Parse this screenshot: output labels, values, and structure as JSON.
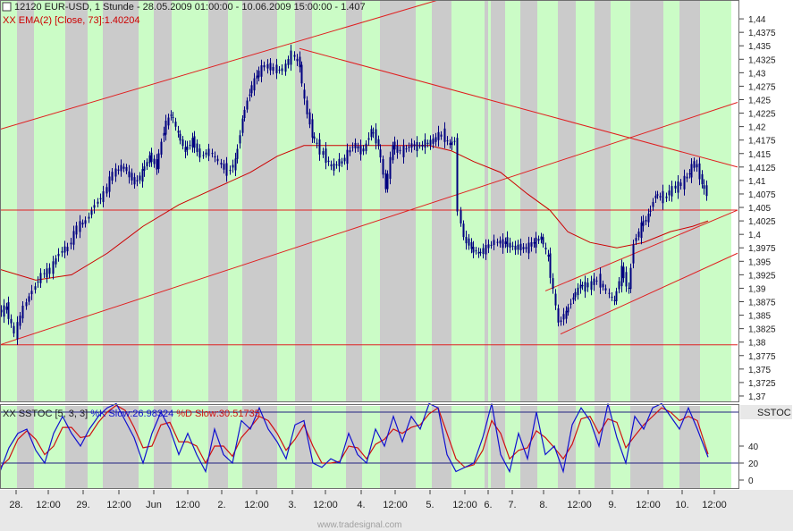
{
  "header": {
    "instrument": "12120  EUR-USD, 1 Stunde - 28.05.2009 01:00:00 - 10.06.2009 15:00:00 - 1.407",
    "ema_label": "XX EMA(2) [Close, 73]:1.40204"
  },
  "stoch_panel": {
    "prefix": "XX SSTOC [5, 3, 3] ",
    "k_label": "%K Slow:26.98324 ",
    "d_label": "%D Slow:30.51735",
    "badge": "SSTOC",
    "levels": [
      80,
      20
    ],
    "y_ticks": [
      "40",
      "20",
      "0"
    ]
  },
  "watermark": "www.tradesignal.com",
  "colors": {
    "green_band": "#cbfcc6",
    "gray_band": "#cbcbcb",
    "ema": "#cc0000",
    "trendline": "#e02020",
    "candle": "#000080",
    "k_line": "#1010d0",
    "d_line": "#d01010"
  },
  "chart_data": {
    "type": "candlestick",
    "title": "12120  EUR-USD, 1 Stunde - 28.05.2009 01:00:00 - 10.06.2009 15:00:00 - 1.407",
    "y_ticks": [
      "1,44",
      "1,4375",
      "1,435",
      "1,4325",
      "1,43",
      "1,4275",
      "1,425",
      "1,4225",
      "1,42",
      "1,4175",
      "1,415",
      "1,4125",
      "1,41",
      "1,4075",
      "1,405",
      "1,4025",
      "1,4",
      "1,3975",
      "1,395",
      "1,3925",
      "1,39",
      "1,3875",
      "1,385",
      "1,3825",
      "1,38",
      "1,3775",
      "1,375",
      "1,3725",
      "1,37"
    ],
    "ylim": [
      1.369,
      1.4435
    ],
    "x_ticks": [
      "28.",
      "12:00",
      "29.",
      "12:00",
      "Jun",
      "12:00",
      "2.",
      "12:00",
      "3.",
      "12:00",
      "4.",
      "12:00",
      "5.",
      "12:00",
      "6.",
      "7.",
      "8.",
      "12:00",
      "9.",
      "12:00",
      "10.",
      "12:00"
    ],
    "last_close": 1.407,
    "ema_value": 1.40204,
    "price_path": [
      [
        0,
        1.3855
      ],
      [
        8,
        1.3865
      ],
      [
        18,
        1.3815
      ],
      [
        28,
        1.3865
      ],
      [
        38,
        1.3895
      ],
      [
        48,
        1.3925
      ],
      [
        58,
        1.3935
      ],
      [
        68,
        1.3965
      ],
      [
        78,
        1.3975
      ],
      [
        88,
        1.4015
      ],
      [
        98,
        1.4025
      ],
      [
        108,
        1.4055
      ],
      [
        118,
        1.4075
      ],
      [
        128,
        1.4115
      ],
      [
        140,
        1.4125
      ],
      [
        152,
        1.4095
      ],
      [
        160,
        1.4115
      ],
      [
        168,
        1.4145
      ],
      [
        176,
        1.4125
      ],
      [
        184,
        1.4195
      ],
      [
        192,
        1.4225
      ],
      [
        200,
        1.4185
      ],
      [
        208,
        1.4155
      ],
      [
        216,
        1.4175
      ],
      [
        226,
        1.4145
      ],
      [
        236,
        1.4155
      ],
      [
        246,
        1.4135
      ],
      [
        256,
        1.4115
      ],
      [
        264,
        1.4135
      ],
      [
        272,
        1.4215
      ],
      [
        280,
        1.4265
      ],
      [
        288,
        1.4295
      ],
      [
        298,
        1.4315
      ],
      [
        308,
        1.4305
      ],
      [
        318,
        1.4305
      ],
      [
        328,
        1.4335
      ],
      [
        336,
        1.4315
      ],
      [
        342,
        1.4245
      ],
      [
        350,
        1.4185
      ],
      [
        360,
        1.4155
      ],
      [
        372,
        1.4125
      ],
      [
        384,
        1.4135
      ],
      [
        396,
        1.4165
      ],
      [
        408,
        1.4155
      ],
      [
        416,
        1.4195
      ],
      [
        424,
        1.4165
      ],
      [
        432,
        1.4085
      ],
      [
        440,
        1.4165
      ],
      [
        450,
        1.4155
      ],
      [
        462,
        1.4165
      ],
      [
        474,
        1.4165
      ],
      [
        486,
        1.4175
      ],
      [
        496,
        1.4185
      ],
      [
        504,
        1.4165
      ],
      [
        510,
        1.4175
      ],
      [
        514,
        1.4045
      ],
      [
        520,
        1.3995
      ],
      [
        528,
        1.3975
      ],
      [
        536,
        1.3965
      ],
      [
        545,
        1.3975
      ],
      [
        555,
        1.3985
      ],
      [
        566,
        1.3985
      ],
      [
        578,
        1.3975
      ],
      [
        590,
        1.3975
      ],
      [
        598,
        1.3985
      ],
      [
        606,
        1.3995
      ],
      [
        614,
        1.3955
      ],
      [
        620,
        1.3895
      ],
      [
        626,
        1.3835
      ],
      [
        634,
        1.3855
      ],
      [
        642,
        1.3885
      ],
      [
        650,
        1.3905
      ],
      [
        660,
        1.3905
      ],
      [
        670,
        1.3915
      ],
      [
        680,
        1.3895
      ],
      [
        688,
        1.3875
      ],
      [
        696,
        1.3935
      ],
      [
        704,
        1.3895
      ],
      [
        710,
        1.3985
      ],
      [
        718,
        1.4015
      ],
      [
        726,
        1.4035
      ],
      [
        734,
        1.4075
      ],
      [
        744,
        1.4065
      ],
      [
        754,
        1.4085
      ],
      [
        764,
        1.4095
      ],
      [
        772,
        1.4115
      ],
      [
        778,
        1.4135
      ],
      [
        786,
        1.4095
      ],
      [
        792,
        1.4075
      ]
    ],
    "ema_path": [
      [
        0,
        1.3935
      ],
      [
        40,
        1.3915
      ],
      [
        80,
        1.3925
      ],
      [
        120,
        1.3965
      ],
      [
        160,
        1.4015
      ],
      [
        200,
        1.4055
      ],
      [
        240,
        1.4085
      ],
      [
        280,
        1.4115
      ],
      [
        310,
        1.4145
      ],
      [
        340,
        1.4165
      ],
      [
        370,
        1.4165
      ],
      [
        400,
        1.4165
      ],
      [
        440,
        1.4165
      ],
      [
        480,
        1.4165
      ],
      [
        505,
        1.4155
      ],
      [
        530,
        1.4135
      ],
      [
        560,
        1.4115
      ],
      [
        590,
        1.4075
      ],
      [
        615,
        1.4045
      ],
      [
        635,
        1.4005
      ],
      [
        660,
        1.3985
      ],
      [
        690,
        1.3975
      ],
      [
        720,
        1.3985
      ],
      [
        750,
        1.4005
      ],
      [
        775,
        1.4015
      ],
      [
        792,
        1.4025
      ]
    ],
    "trendlines": [
      [
        [
          0,
          1.4195
        ],
        [
          490,
          1.4435
        ]
      ],
      [
        [
          335,
          1.4345
        ],
        [
          825,
          1.4125
        ]
      ],
      [
        [
          0,
          1.3795
        ],
        [
          825,
          1.4245
        ]
      ],
      [
        [
          0,
          1.4045
        ],
        [
          825,
          1.4045
        ]
      ],
      [
        [
          0,
          1.3795
        ],
        [
          825,
          1.3795
        ]
      ],
      [
        [
          610,
          1.3895
        ],
        [
          825,
          1.4045
        ]
      ],
      [
        [
          627,
          1.3815
        ],
        [
          825,
          1.3965
        ]
      ]
    ],
    "stoch_k": [
      [
        0,
        10
      ],
      [
        10,
        38
      ],
      [
        20,
        55
      ],
      [
        30,
        60
      ],
      [
        40,
        35
      ],
      [
        50,
        20
      ],
      [
        60,
        55
      ],
      [
        70,
        75
      ],
      [
        80,
        55
      ],
      [
        90,
        40
      ],
      [
        100,
        60
      ],
      [
        110,
        75
      ],
      [
        120,
        85
      ],
      [
        130,
        90
      ],
      [
        140,
        70
      ],
      [
        150,
        50
      ],
      [
        160,
        20
      ],
      [
        170,
        55
      ],
      [
        180,
        80
      ],
      [
        190,
        60
      ],
      [
        200,
        30
      ],
      [
        210,
        55
      ],
      [
        220,
        30
      ],
      [
        230,
        10
      ],
      [
        240,
        60
      ],
      [
        250,
        30
      ],
      [
        260,
        20
      ],
      [
        270,
        70
      ],
      [
        280,
        60
      ],
      [
        290,
        85
      ],
      [
        300,
        60
      ],
      [
        310,
        45
      ],
      [
        320,
        25
      ],
      [
        330,
        65
      ],
      [
        340,
        70
      ],
      [
        350,
        20
      ],
      [
        360,
        15
      ],
      [
        370,
        25
      ],
      [
        380,
        20
      ],
      [
        390,
        55
      ],
      [
        400,
        30
      ],
      [
        410,
        20
      ],
      [
        420,
        60
      ],
      [
        430,
        40
      ],
      [
        440,
        75
      ],
      [
        450,
        45
      ],
      [
        460,
        75
      ],
      [
        470,
        60
      ],
      [
        480,
        90
      ],
      [
        490,
        85
      ],
      [
        500,
        30
      ],
      [
        510,
        10
      ],
      [
        520,
        15
      ],
      [
        530,
        20
      ],
      [
        540,
        50
      ],
      [
        550,
        90
      ],
      [
        560,
        30
      ],
      [
        570,
        10
      ],
      [
        580,
        55
      ],
      [
        590,
        25
      ],
      [
        600,
        80
      ],
      [
        610,
        30
      ],
      [
        620,
        40
      ],
      [
        630,
        10
      ],
      [
        640,
        65
      ],
      [
        650,
        85
      ],
      [
        660,
        70
      ],
      [
        670,
        40
      ],
      [
        680,
        90
      ],
      [
        690,
        50
      ],
      [
        700,
        20
      ],
      [
        710,
        75
      ],
      [
        720,
        60
      ],
      [
        730,
        85
      ],
      [
        740,
        90
      ],
      [
        750,
        75
      ],
      [
        760,
        60
      ],
      [
        770,
        85
      ],
      [
        780,
        60
      ],
      [
        792,
        26.98
      ]
    ],
    "stoch_d": [
      [
        0,
        15
      ],
      [
        10,
        25
      ],
      [
        20,
        48
      ],
      [
        30,
        58
      ],
      [
        40,
        48
      ],
      [
        50,
        30
      ],
      [
        60,
        40
      ],
      [
        70,
        62
      ],
      [
        80,
        62
      ],
      [
        90,
        50
      ],
      [
        100,
        52
      ],
      [
        110,
        68
      ],
      [
        120,
        80
      ],
      [
        130,
        88
      ],
      [
        140,
        82
      ],
      [
        150,
        62
      ],
      [
        160,
        38
      ],
      [
        170,
        40
      ],
      [
        180,
        65
      ],
      [
        190,
        68
      ],
      [
        200,
        45
      ],
      [
        210,
        45
      ],
      [
        220,
        40
      ],
      [
        230,
        20
      ],
      [
        240,
        40
      ],
      [
        250,
        40
      ],
      [
        260,
        28
      ],
      [
        270,
        50
      ],
      [
        280,
        62
      ],
      [
        290,
        75
      ],
      [
        300,
        70
      ],
      [
        310,
        55
      ],
      [
        320,
        35
      ],
      [
        330,
        48
      ],
      [
        340,
        65
      ],
      [
        350,
        40
      ],
      [
        360,
        20
      ],
      [
        370,
        20
      ],
      [
        380,
        22
      ],
      [
        390,
        40
      ],
      [
        400,
        38
      ],
      [
        410,
        25
      ],
      [
        420,
        42
      ],
      [
        430,
        48
      ],
      [
        440,
        60
      ],
      [
        450,
        55
      ],
      [
        460,
        62
      ],
      [
        470,
        65
      ],
      [
        480,
        78
      ],
      [
        490,
        85
      ],
      [
        500,
        55
      ],
      [
        510,
        25
      ],
      [
        520,
        15
      ],
      [
        530,
        18
      ],
      [
        540,
        35
      ],
      [
        550,
        70
      ],
      [
        560,
        55
      ],
      [
        570,
        25
      ],
      [
        580,
        35
      ],
      [
        590,
        38
      ],
      [
        600,
        58
      ],
      [
        610,
        50
      ],
      [
        620,
        38
      ],
      [
        630,
        25
      ],
      [
        640,
        42
      ],
      [
        650,
        72
      ],
      [
        660,
        75
      ],
      [
        670,
        55
      ],
      [
        680,
        72
      ],
      [
        690,
        68
      ],
      [
        700,
        38
      ],
      [
        710,
        52
      ],
      [
        720,
        65
      ],
      [
        730,
        75
      ],
      [
        740,
        85
      ],
      [
        750,
        80
      ],
      [
        760,
        70
      ],
      [
        770,
        75
      ],
      [
        780,
        70
      ],
      [
        792,
        30.52
      ]
    ]
  }
}
